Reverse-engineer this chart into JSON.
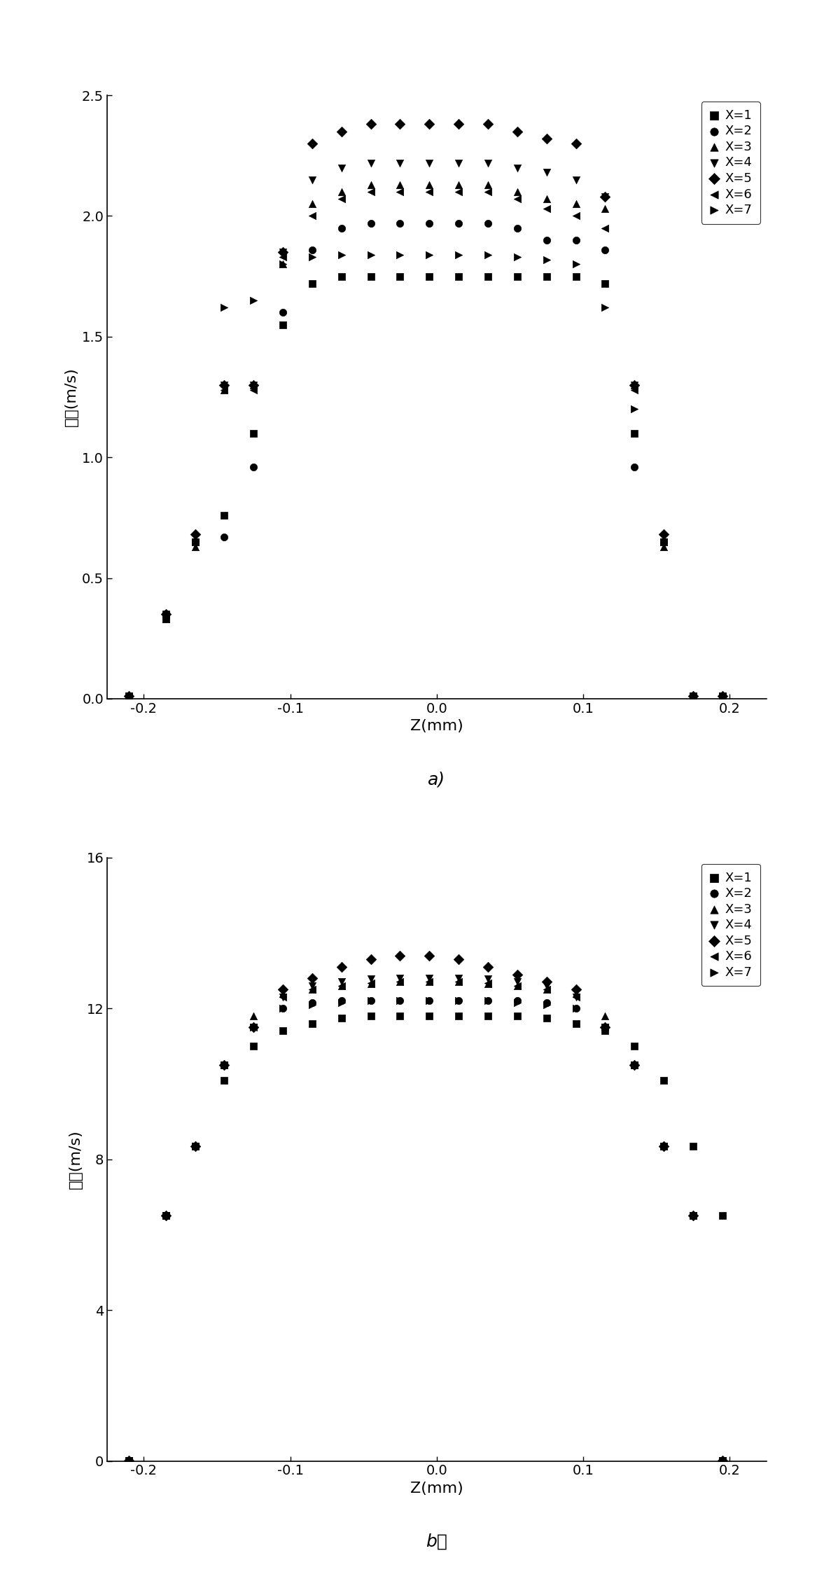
{
  "chart_a": {
    "ylabel": "速度(m/s)",
    "xlabel": "Z(mm)",
    "label": "a)",
    "ylim": [
      0,
      2.5
    ],
    "xlim": [
      -0.225,
      0.225
    ],
    "yticks": [
      0.0,
      0.5,
      1.0,
      1.5,
      2.0,
      2.5
    ],
    "xticks": [
      -0.2,
      -0.1,
      0.0,
      0.1,
      0.2
    ],
    "z_positions": [
      -0.21,
      -0.185,
      -0.165,
      -0.145,
      -0.125,
      -0.105,
      -0.085,
      -0.065,
      -0.045,
      -0.025,
      -0.005,
      0.015,
      0.035,
      0.055,
      0.075,
      0.095,
      0.115,
      0.135,
      0.155,
      0.175,
      0.195
    ],
    "series": [
      {
        "label": "X=1",
        "marker": "s",
        "v": [
          0.01,
          0.35,
          0.65,
          0.76,
          1.1,
          1.55,
          1.72,
          1.75,
          1.75,
          1.75,
          1.75,
          1.75,
          1.75,
          1.75,
          1.75,
          1.75,
          1.72,
          1.1,
          0.65,
          0.01,
          0.01
        ]
      },
      {
        "label": "X=2",
        "marker": "o",
        "v": [
          0.01,
          0.35,
          0.65,
          0.67,
          0.96,
          1.6,
          1.86,
          1.95,
          1.97,
          1.97,
          1.97,
          1.97,
          1.97,
          1.95,
          1.9,
          1.9,
          1.86,
          0.96,
          0.65,
          0.01,
          0.01
        ]
      },
      {
        "label": "X=3",
        "marker": "^",
        "v": [
          0.01,
          0.33,
          0.63,
          1.28,
          1.3,
          1.8,
          2.05,
          2.1,
          2.13,
          2.13,
          2.13,
          2.13,
          2.13,
          2.1,
          2.07,
          2.05,
          2.03,
          1.3,
          0.63,
          0.01,
          0.01
        ]
      },
      {
        "label": "X=4",
        "marker": "v",
        "v": [
          0.01,
          0.33,
          0.65,
          1.3,
          1.3,
          1.85,
          2.15,
          2.2,
          2.22,
          2.22,
          2.22,
          2.22,
          2.22,
          2.2,
          2.18,
          2.15,
          2.08,
          1.3,
          0.65,
          0.01,
          0.01
        ]
      },
      {
        "label": "X=5",
        "marker": "D",
        "v": [
          0.01,
          0.35,
          0.68,
          1.3,
          1.3,
          1.85,
          2.3,
          2.35,
          2.38,
          2.38,
          2.38,
          2.38,
          2.38,
          2.35,
          2.32,
          2.3,
          2.08,
          1.3,
          0.68,
          0.01,
          0.01
        ]
      },
      {
        "label": "X=6",
        "marker": "<",
        "v": [
          0.01,
          0.33,
          0.65,
          1.28,
          1.28,
          1.83,
          2.0,
          2.07,
          2.1,
          2.1,
          2.1,
          2.1,
          2.1,
          2.07,
          2.03,
          2.0,
          1.95,
          1.28,
          0.65,
          0.01,
          0.01
        ]
      },
      {
        "label": "X=7",
        "marker": ">",
        "v": [
          0.01,
          0.33,
          0.65,
          1.62,
          1.65,
          1.8,
          1.83,
          1.84,
          1.84,
          1.84,
          1.84,
          1.84,
          1.84,
          1.83,
          1.82,
          1.8,
          1.62,
          1.2,
          0.65,
          0.01,
          0.01
        ]
      }
    ]
  },
  "chart_b": {
    "ylabel": "速度(m/s)",
    "xlabel": "Z(mm)",
    "label": "b）",
    "ylim": [
      0,
      16
    ],
    "xlim": [
      -0.225,
      0.225
    ],
    "yticks": [
      0,
      4,
      8,
      12,
      16
    ],
    "xticks": [
      -0.2,
      -0.1,
      0.0,
      0.1,
      0.2
    ],
    "z_positions": [
      -0.21,
      -0.185,
      -0.165,
      -0.145,
      -0.125,
      -0.105,
      -0.085,
      -0.065,
      -0.045,
      -0.025,
      -0.005,
      0.015,
      0.035,
      0.055,
      0.075,
      0.095,
      0.115,
      0.135,
      0.155,
      0.175,
      0.195
    ],
    "series": [
      {
        "label": "X=1",
        "marker": "s",
        "v": [
          0.01,
          6.5,
          8.35,
          10.1,
          11.0,
          11.4,
          11.6,
          11.75,
          11.8,
          11.8,
          11.8,
          11.8,
          11.8,
          11.8,
          11.75,
          11.6,
          11.4,
          11.0,
          10.1,
          8.35,
          6.5
        ]
      },
      {
        "label": "X=2",
        "marker": "o",
        "v": [
          0.01,
          6.5,
          8.35,
          10.5,
          11.5,
          12.0,
          12.15,
          12.2,
          12.2,
          12.2,
          12.2,
          12.2,
          12.2,
          12.2,
          12.15,
          12.0,
          11.5,
          10.5,
          8.35,
          6.5,
          0.01
        ]
      },
      {
        "label": "X=3",
        "marker": "^",
        "v": [
          0.01,
          6.5,
          8.35,
          10.5,
          11.8,
          12.4,
          12.5,
          12.6,
          12.65,
          12.7,
          12.7,
          12.7,
          12.65,
          12.6,
          12.5,
          12.4,
          11.8,
          10.5,
          8.35,
          6.5,
          0.01
        ]
      },
      {
        "label": "X=4",
        "marker": "v",
        "v": [
          0.01,
          6.5,
          8.35,
          10.5,
          11.5,
          12.3,
          12.6,
          12.7,
          12.78,
          12.8,
          12.8,
          12.8,
          12.78,
          12.7,
          12.6,
          12.3,
          11.5,
          10.5,
          8.35,
          6.5,
          0.01
        ]
      },
      {
        "label": "X=5",
        "marker": "D",
        "v": [
          0.01,
          6.5,
          8.35,
          10.5,
          11.5,
          12.5,
          12.8,
          13.1,
          13.3,
          13.4,
          13.4,
          13.3,
          13.1,
          12.9,
          12.7,
          12.5,
          11.5,
          10.5,
          8.35,
          6.5,
          0.01
        ]
      },
      {
        "label": "X=6",
        "marker": "<",
        "v": [
          0.01,
          6.5,
          8.35,
          10.5,
          11.5,
          12.3,
          12.5,
          12.6,
          12.68,
          12.7,
          12.7,
          12.7,
          12.68,
          12.6,
          12.5,
          12.3,
          11.5,
          10.5,
          8.35,
          6.5,
          0.01
        ]
      },
      {
        "label": "X=7",
        "marker": ">",
        "v": [
          0.01,
          6.5,
          8.35,
          10.5,
          11.5,
          12.0,
          12.1,
          12.15,
          12.2,
          12.2,
          12.2,
          12.2,
          12.2,
          12.15,
          12.1,
          12.0,
          11.5,
          10.5,
          8.35,
          6.5,
          0.01
        ]
      }
    ]
  }
}
